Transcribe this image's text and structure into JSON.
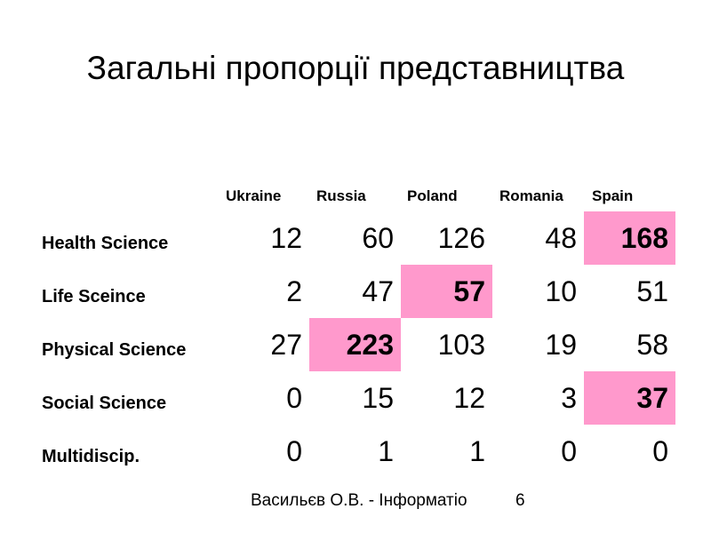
{
  "title": "Загальні пропорції представництва",
  "columns": [
    "Ukraine",
    "Russia",
    "Poland",
    "Romania",
    "Spain"
  ],
  "rows": [
    {
      "label": "Health Science",
      "values": [
        "12",
        "60",
        "126",
        "48",
        "168"
      ],
      "highlight": 4
    },
    {
      "label": "Life Sceince",
      "values": [
        "2",
        "47",
        "57",
        "10",
        "51"
      ],
      "highlight": 2
    },
    {
      "label": "Physical Science",
      "values": [
        "27",
        "223",
        "103",
        "19",
        "58"
      ],
      "highlight": 1
    },
    {
      "label": "Social Science",
      "values": [
        "0",
        "15",
        "12",
        "3",
        "37"
      ],
      "highlight": 4
    },
    {
      "label": "Multidiscip.",
      "values": [
        "0",
        "1",
        "1",
        "0",
        "0"
      ],
      "highlight": null
    }
  ],
  "footer": {
    "author": "Васильєв О.В. - Інформатіо",
    "page": "6"
  },
  "colors": {
    "highlight": "#ff99cc"
  }
}
